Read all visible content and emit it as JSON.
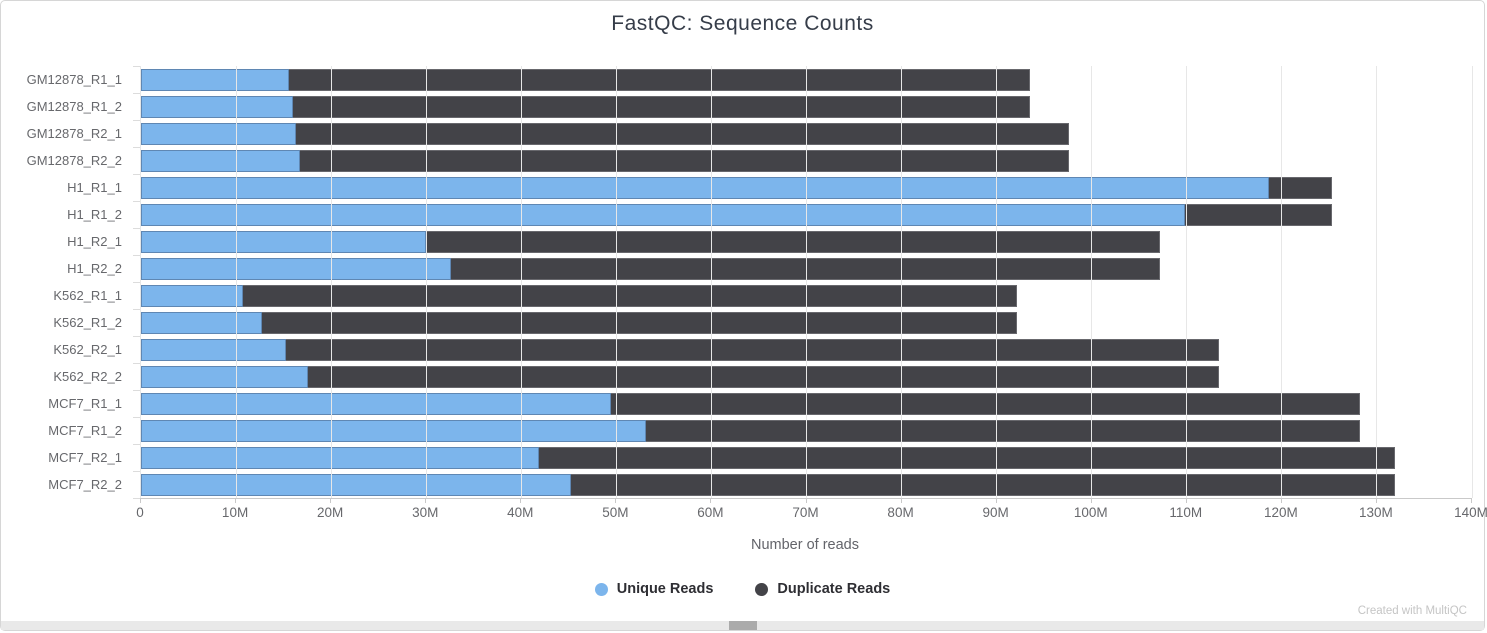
{
  "title": "FastQC: Sequence Counts",
  "xlabel": "Number of reads",
  "credit": "Created with MultiQC",
  "colors": {
    "unique": "#7cb5ec",
    "duplicate": "#434348",
    "grid": "#e7e7e7",
    "axis_text": "#67686c",
    "title_text": "#363d49"
  },
  "chart_data": {
    "type": "bar",
    "orientation": "horizontal",
    "stacked": true,
    "title": "FastQC: Sequence Counts",
    "xlabel": "Number of reads",
    "ylabel": "",
    "xlim_millions": [
      0,
      140
    ],
    "grid": true,
    "legend_position": "bottom",
    "x_ticks": [
      "0",
      "10M",
      "20M",
      "30M",
      "40M",
      "50M",
      "60M",
      "70M",
      "80M",
      "90M",
      "100M",
      "110M",
      "120M",
      "130M",
      "140M"
    ],
    "categories": [
      "GM12878_R1_1",
      "GM12878_R1_2",
      "GM12878_R2_1",
      "GM12878_R2_2",
      "H1_R1_1",
      "H1_R1_2",
      "H1_R2_1",
      "H1_R2_2",
      "K562_R1_1",
      "K562_R1_2",
      "K562_R2_1",
      "K562_R2_2",
      "MCF7_R1_1",
      "MCF7_R1_2",
      "MCF7_R2_1",
      "MCF7_R2_2"
    ],
    "series": [
      {
        "name": "Unique Reads",
        "color": "#7cb5ec",
        "values_millions": [
          15.6,
          16.0,
          16.3,
          16.7,
          118.6,
          109.8,
          30.0,
          32.6,
          10.7,
          12.7,
          15.3,
          17.6,
          49.4,
          53.1,
          41.9,
          45.2
        ]
      },
      {
        "name": "Duplicate Reads",
        "color": "#434348",
        "values_millions": [
          77.9,
          77.5,
          81.3,
          80.9,
          6.7,
          15.5,
          77.2,
          74.6,
          81.4,
          79.4,
          98.1,
          95.8,
          78.8,
          75.1,
          90.0,
          86.7
        ]
      }
    ],
    "totals_millions": [
      93.5,
      93.5,
      97.6,
      97.6,
      125.3,
      125.3,
      107.2,
      107.2,
      92.1,
      92.1,
      113.4,
      113.4,
      128.2,
      128.2,
      131.9,
      131.9
    ]
  }
}
